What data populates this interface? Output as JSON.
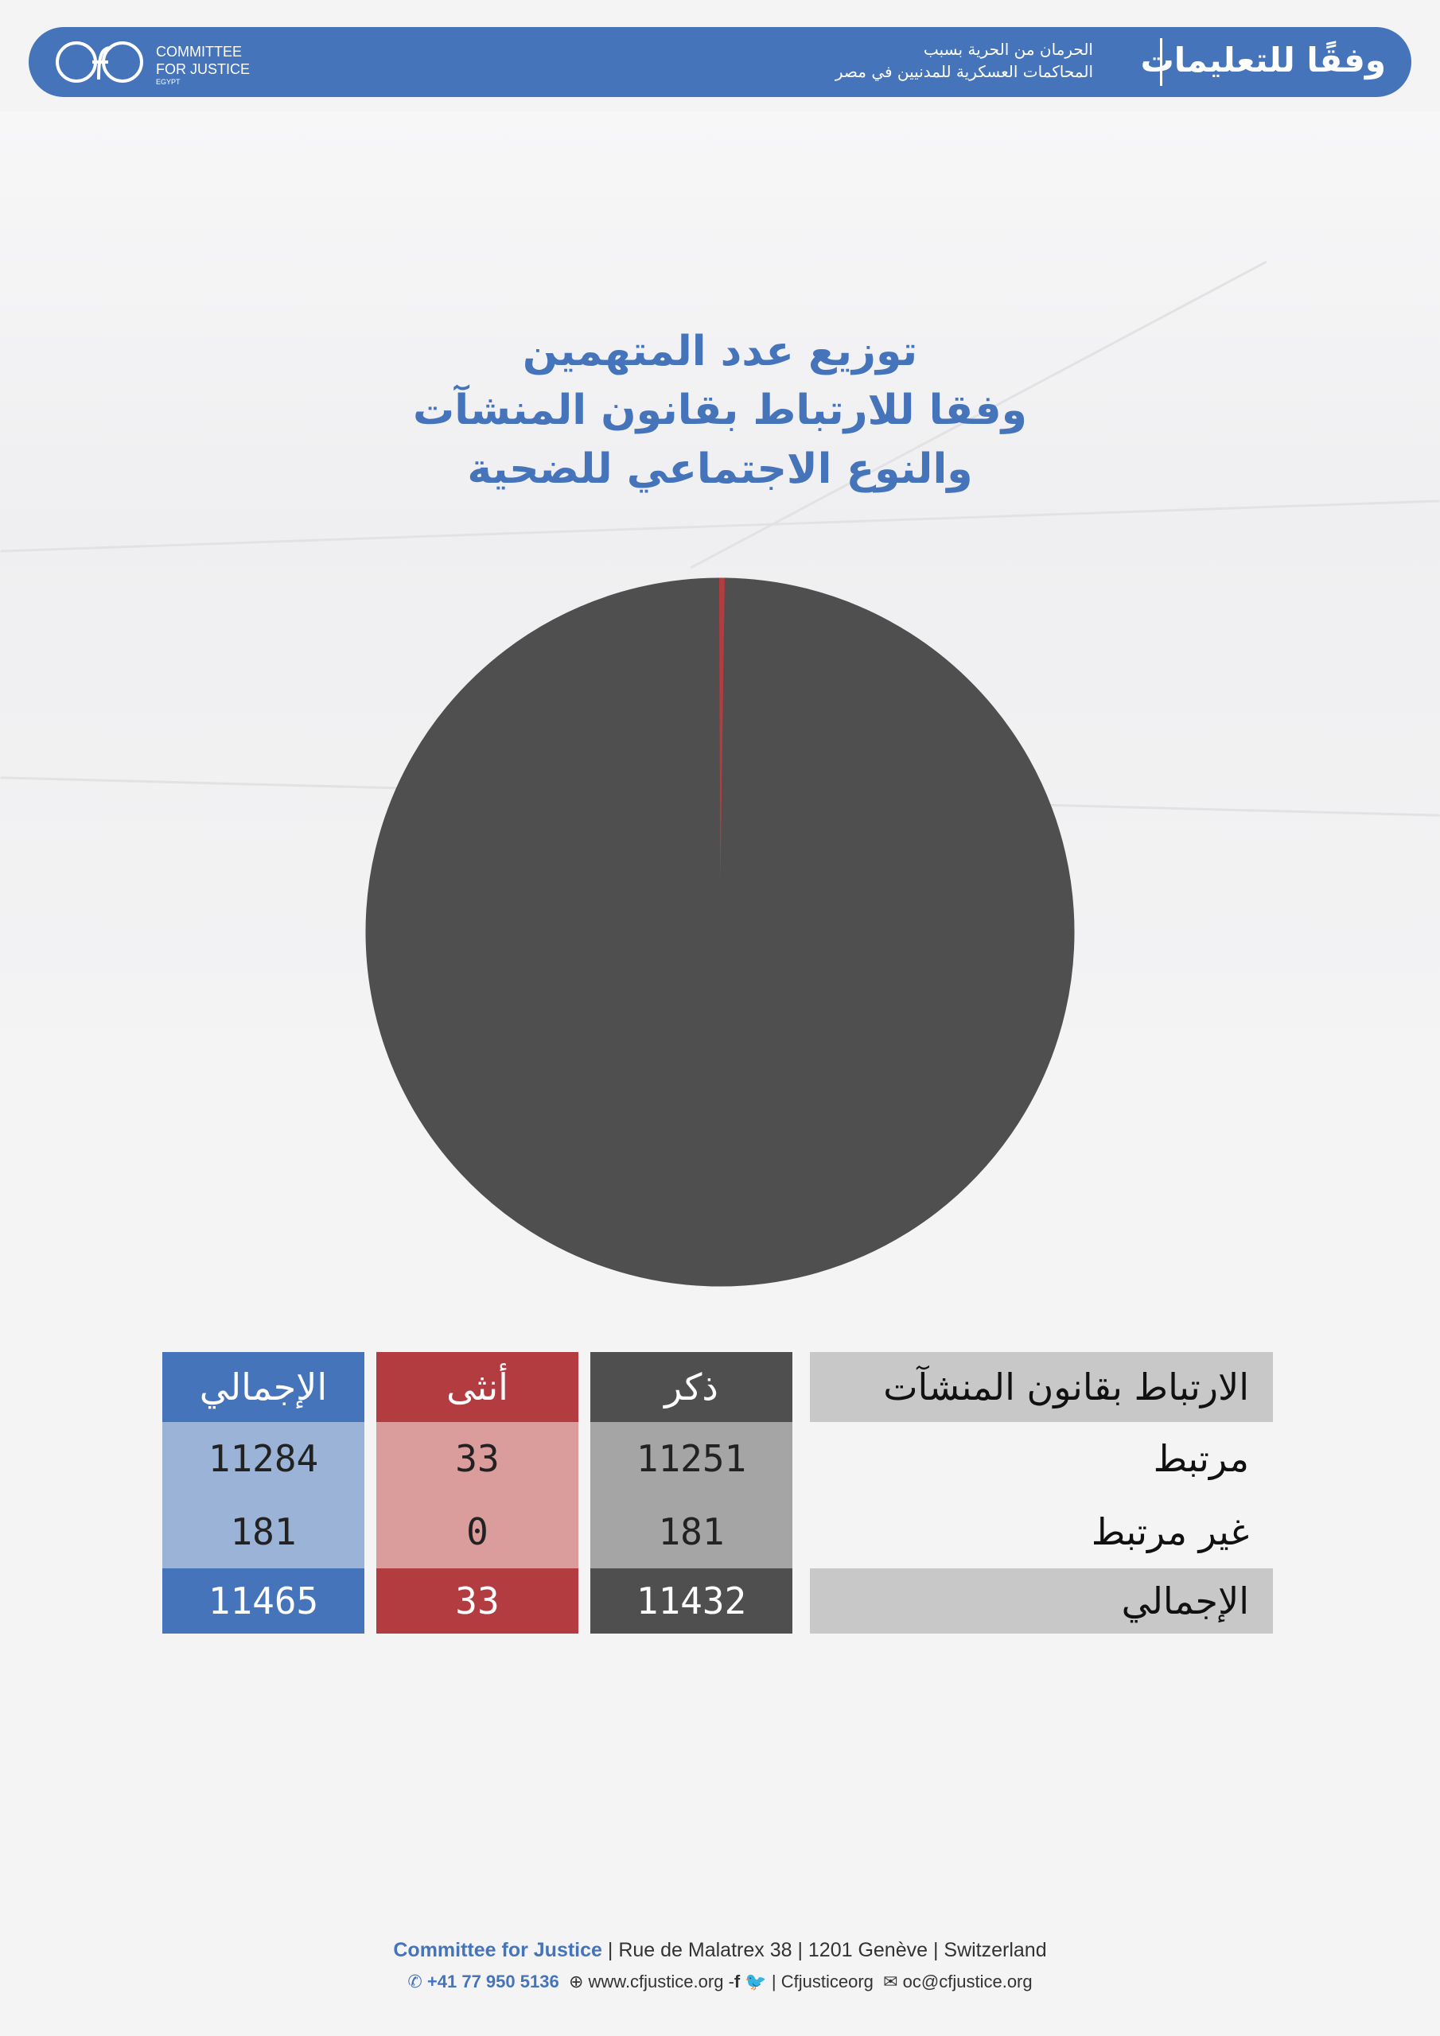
{
  "header": {
    "logo_line1": "COMMITTEE",
    "logo_line2": "FOR JUSTICE",
    "logo_line3": "EGYPT",
    "title": "وفقًا للتعليمات",
    "subtitle_line1": "الحرمان من الحرية بسبب",
    "subtitle_line2": "المحاكمات العسكرية للمدنيين في مصر"
  },
  "chart_title": {
    "line1": "توزيع عدد المتهمين",
    "line2": "وفقا للارتباط بقانون المنشآت",
    "line3": "والنوع الاجتماعي للضحية"
  },
  "chart_data": {
    "type": "pie",
    "slices": [
      {
        "label": "ذكر",
        "value": 11432,
        "color": "#4f4f4f"
      },
      {
        "label": "أنثى",
        "value": 33,
        "color": "#b33c40"
      }
    ]
  },
  "table": {
    "headers": {
      "category": "الارتباط بقانون المنشآت",
      "male": "ذكر",
      "female": "أنثى",
      "total": "الإجمالي"
    },
    "rows": [
      {
        "label": "مرتبط",
        "male": "11251",
        "female": "33",
        "total": "11284"
      },
      {
        "label": "غير مرتبط",
        "male": "181",
        "female": "0",
        "total": "181"
      },
      {
        "label": "الإجمالي",
        "male": "11432",
        "female": "33",
        "total": "11465"
      }
    ]
  },
  "colors": {
    "brand_blue": "#4574ba",
    "male_dark": "#4f4f4f",
    "female_red": "#b33c40",
    "label_gray": "#c8c8c8",
    "male_light": "#a5a5a5",
    "female_light": "#db9c9c",
    "total_light": "#9ab3d6"
  },
  "footer": {
    "org": "Committee for Justice",
    "address": " | Rue de Malatrex 38 | 1201 Genève | Switzerland",
    "phone": "+41 77 950 5136",
    "website": "www.cfjustice.org",
    "social": "Cfjusticeorg",
    "email": "oc@cfjustice.org"
  }
}
